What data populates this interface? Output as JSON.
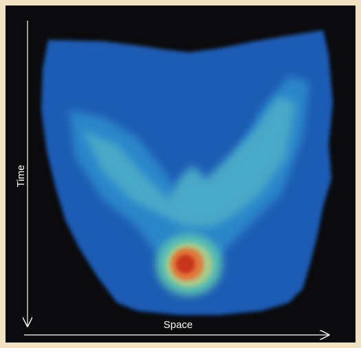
{
  "axes": {
    "y_label": "Time",
    "x_label": "Space"
  }
}
